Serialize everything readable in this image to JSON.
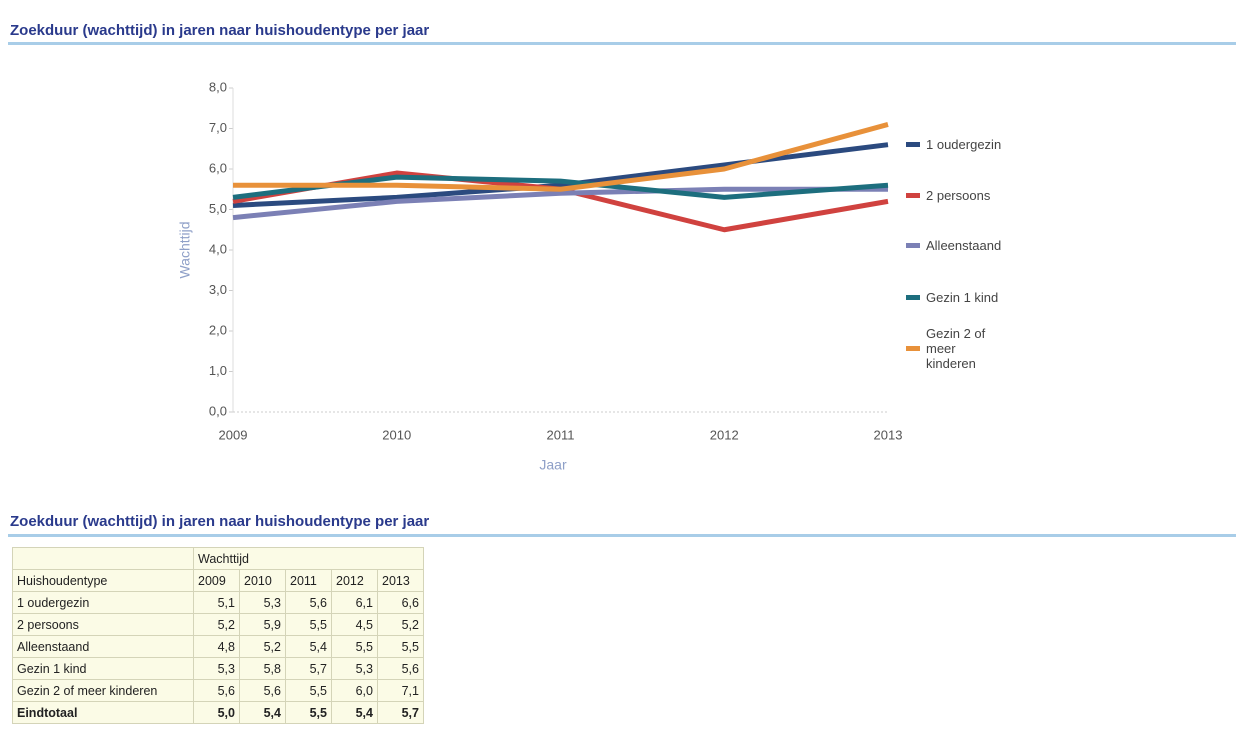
{
  "chart_data": {
    "type": "line",
    "title": "Zoekduur (wachttijd) in jaren naar huishoudentype per jaar",
    "x_label": "Jaar",
    "y_label": "Wachttijd",
    "categories": [
      "2009",
      "2010",
      "2011",
      "2012",
      "2013"
    ],
    "ylim": [
      0,
      8
    ],
    "yticks": [
      {
        "value": 0,
        "label": "0,0"
      },
      {
        "value": 1,
        "label": "1,0"
      },
      {
        "value": 2,
        "label": "2,0"
      },
      {
        "value": 3,
        "label": "3,0"
      },
      {
        "value": 4,
        "label": "4,0"
      },
      {
        "value": 5,
        "label": "5,0"
      },
      {
        "value": 6,
        "label": "6,0"
      },
      {
        "value": 7,
        "label": "7,0"
      },
      {
        "value": 8,
        "label": "8,0"
      }
    ],
    "legend": "right",
    "series": [
      {
        "name": "1 oudergezin",
        "color": "#2b4a7f",
        "values": [
          5.1,
          5.3,
          5.6,
          6.1,
          6.6
        ]
      },
      {
        "name": "2 persoons",
        "color": "#d0423f",
        "values": [
          5.2,
          5.9,
          5.5,
          4.5,
          5.2
        ]
      },
      {
        "name": "Alleenstaand",
        "color": "#7b80b5",
        "values": [
          4.8,
          5.2,
          5.4,
          5.5,
          5.5
        ]
      },
      {
        "name": "Gezin 1 kind",
        "color": "#1d6e7e",
        "values": [
          5.3,
          5.8,
          5.7,
          5.3,
          5.6
        ]
      },
      {
        "name": "Gezin 2 of meer kinderen",
        "color": "#e8913a",
        "values": [
          5.6,
          5.6,
          5.5,
          6.0,
          7.1
        ]
      }
    ]
  },
  "table": {
    "title": "Zoekduur (wachttijd) in jaren naar huishoudentype per jaar",
    "group_header": "Wachttijd",
    "row_header": "Huishoudentype",
    "columns": [
      "2009",
      "2010",
      "2011",
      "2012",
      "2013"
    ],
    "rows": [
      [
        "1 oudergezin",
        "5,1",
        "5,3",
        "5,6",
        "6,1",
        "6,6"
      ],
      [
        "2 persoons",
        "5,2",
        "5,9",
        "5,5",
        "4,5",
        "5,2"
      ],
      [
        "Alleenstaand",
        "4,8",
        "5,2",
        "5,4",
        "5,5",
        "5,5"
      ],
      [
        "Gezin 1 kind",
        "5,3",
        "5,8",
        "5,7",
        "5,3",
        "5,6"
      ],
      [
        "Gezin 2 of meer kinderen",
        "5,6",
        "5,6",
        "5,5",
        "6,0",
        "7,1"
      ]
    ],
    "total": [
      "Eindtotaal",
      "5,0",
      "5,4",
      "5,5",
      "5,4",
      "5,7"
    ]
  }
}
